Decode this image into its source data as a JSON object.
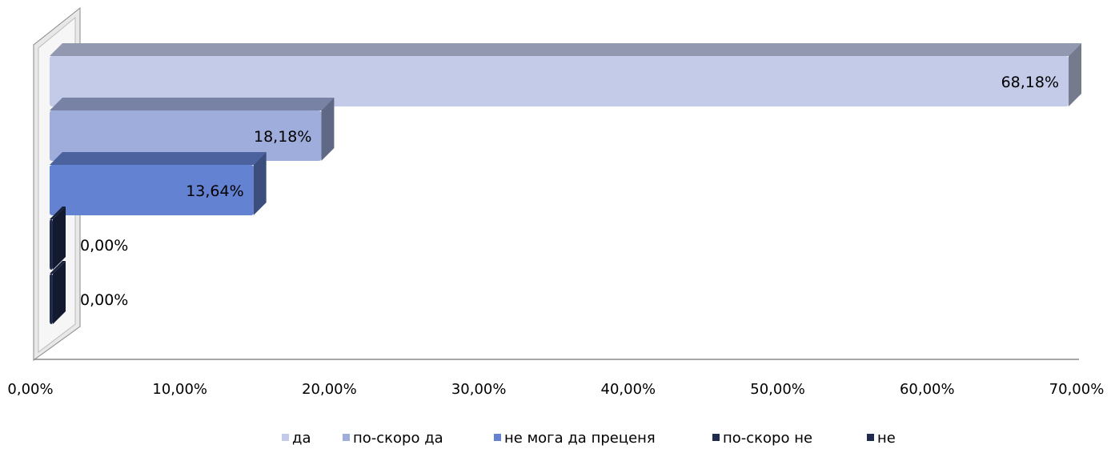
{
  "chart_data": {
    "type": "bar",
    "orientation": "horizontal",
    "series": [
      {
        "name": "да",
        "color": "#c3cbe9",
        "values": [
          68.18
        ],
        "value_labels": [
          "68,18%"
        ]
      },
      {
        "name": "по-скоро да",
        "color": "#9eaddc",
        "values": [
          18.18
        ],
        "value_labels": [
          "18,18%"
        ]
      },
      {
        "name": "не мога да преценя",
        "color": "#6482d2",
        "values": [
          13.64
        ],
        "value_labels": [
          "13,64%"
        ]
      },
      {
        "name": "по-скоро не",
        "color": "#1f2c4e",
        "values": [
          0
        ],
        "value_labels": [
          "0,00%"
        ]
      },
      {
        "name": "не",
        "color": "#1f2c4e",
        "values": [
          0
        ],
        "value_labels": [
          "0,00%"
        ]
      }
    ],
    "xlim": [
      0,
      70
    ],
    "xticks": [
      {
        "value": 0,
        "label": "0,00%"
      },
      {
        "value": 10,
        "label": "10,00%"
      },
      {
        "value": 20,
        "label": "20,00%"
      },
      {
        "value": 30,
        "label": "30,00%"
      },
      {
        "value": 40,
        "label": "40,00%"
      },
      {
        "value": 50,
        "label": "50,00%"
      },
      {
        "value": 60,
        "label": "60,00%"
      },
      {
        "value": 70,
        "label": "70,00%"
      }
    ],
    "legend": "bottom"
  }
}
